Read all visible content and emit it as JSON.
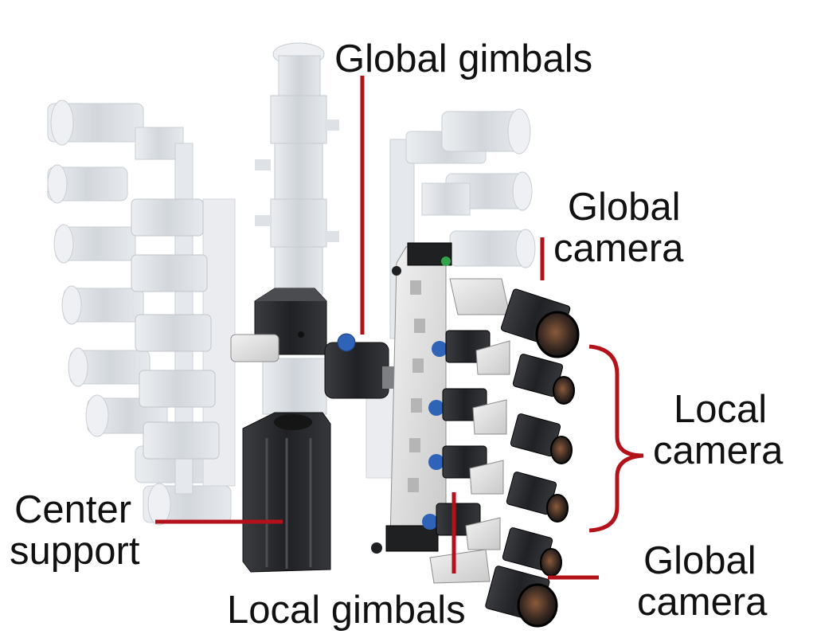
{
  "labels": {
    "global_gimbals": "Global gimbals",
    "global_camera_top": [
      "Global",
      "camera"
    ],
    "local_camera": [
      "Local",
      "camera"
    ],
    "center_support": [
      "Center",
      "support"
    ],
    "local_gimbals": "Local gimbals",
    "global_camera_bottom": [
      "Global",
      "camera"
    ]
  },
  "colors": {
    "leader_line": "#b3121a",
    "ghost_parts": "#c9cfd6",
    "camera_body": "#1d1d1f",
    "frame": "#e9e9e9",
    "support": "#2b2d30",
    "gimbal_knob": "#2f63b8",
    "screw": "#33a34a"
  }
}
